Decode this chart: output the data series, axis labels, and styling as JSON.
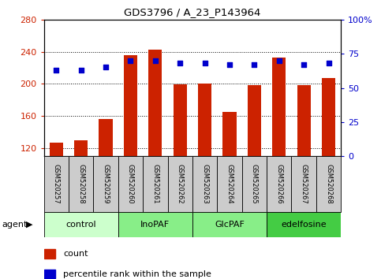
{
  "title": "GDS3796 / A_23_P143964",
  "samples": [
    "GSM520257",
    "GSM520258",
    "GSM520259",
    "GSM520260",
    "GSM520261",
    "GSM520262",
    "GSM520263",
    "GSM520264",
    "GSM520265",
    "GSM520266",
    "GSM520267",
    "GSM520268"
  ],
  "counts": [
    127,
    130,
    156,
    236,
    243,
    199,
    200,
    165,
    198,
    233,
    198,
    207
  ],
  "percentile": [
    63,
    63,
    65,
    70,
    70,
    68,
    68,
    67,
    67,
    70,
    67,
    68
  ],
  "groups": [
    {
      "label": "control",
      "start": 0,
      "end": 3,
      "color": "#ccffcc"
    },
    {
      "label": "InoPAF",
      "start": 3,
      "end": 6,
      "color": "#88ee88"
    },
    {
      "label": "GlcPAF",
      "start": 6,
      "end": 9,
      "color": "#88ee88"
    },
    {
      "label": "edelfosine",
      "start": 9,
      "end": 12,
      "color": "#44cc44"
    }
  ],
  "ylim_left": [
    110,
    280
  ],
  "ylim_right": [
    0,
    100
  ],
  "yticks_left": [
    120,
    160,
    200,
    240,
    280
  ],
  "yticks_right": [
    0,
    25,
    50,
    75,
    100
  ],
  "bar_color": "#cc2200",
  "dot_color": "#0000cc",
  "cell_bg_color": "#cccccc",
  "plot_bg_color": "#ffffff",
  "left_tick_color": "#cc2200",
  "right_tick_color": "#0000cc",
  "agent_label": "agent",
  "legend_items": [
    {
      "color": "#cc2200",
      "label": "count"
    },
    {
      "color": "#0000cc",
      "label": "percentile rank within the sample"
    }
  ]
}
